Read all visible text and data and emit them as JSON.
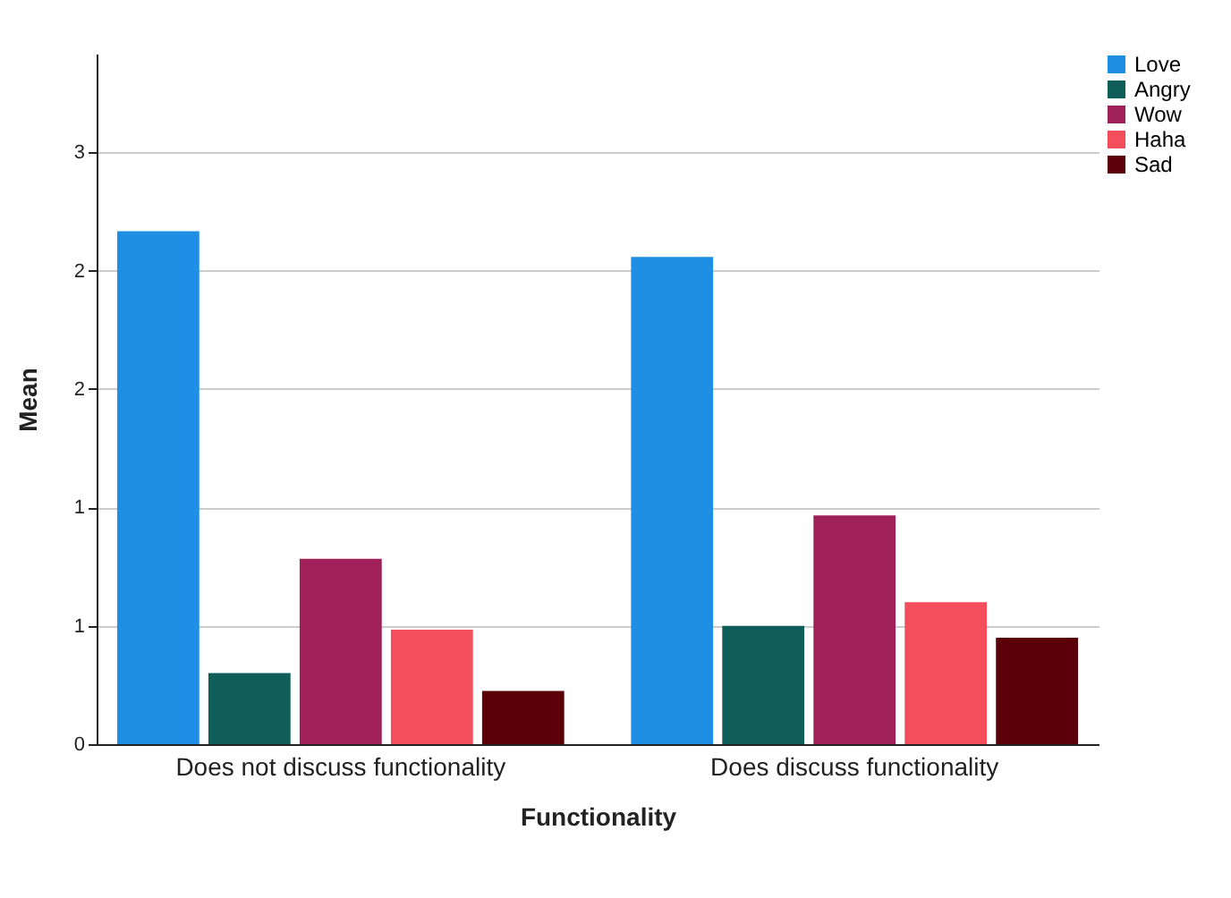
{
  "chart_data": {
    "type": "bar",
    "xlabel": "Functionality",
    "ylabel": "Mean",
    "categories": [
      "Does not discuss functionality",
      "Does discuss functionality"
    ],
    "series": [
      {
        "name": "Love",
        "color": "#1f8fe5",
        "values": [
          2.6,
          2.47
        ]
      },
      {
        "name": "Angry",
        "color": "#0f5e5a",
        "values": [
          0.36,
          0.6
        ]
      },
      {
        "name": "Wow",
        "color": "#a0205a",
        "values": [
          0.94,
          1.16
        ]
      },
      {
        "name": "Haha",
        "color": "#f44e5c",
        "values": [
          0.58,
          0.72
        ]
      },
      {
        "name": "Sad",
        "color": "#5b0009",
        "values": [
          0.27,
          0.54
        ]
      }
    ],
    "ylim": [
      0,
      3.5
    ],
    "yticks": [
      {
        "value": 0,
        "label": "0"
      },
      {
        "value": 0.6,
        "label": "1"
      },
      {
        "value": 1.2,
        "label": "1"
      },
      {
        "value": 1.8,
        "label": "2"
      },
      {
        "value": 2.4,
        "label": "2"
      },
      {
        "value": 3.0,
        "label": "3"
      }
    ],
    "grid": "y",
    "legend": "top right"
  }
}
